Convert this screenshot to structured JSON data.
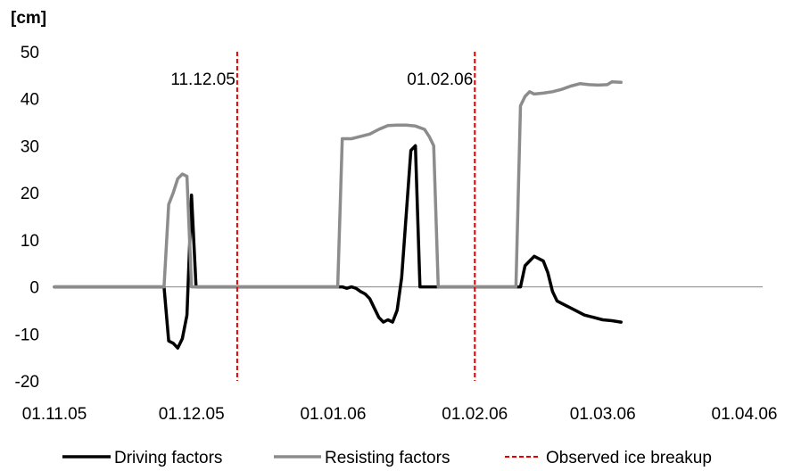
{
  "chart_data": {
    "type": "line",
    "ylabel": "[cm]",
    "ylim": [
      -20,
      50
    ],
    "yticks": [
      -20,
      -10,
      0,
      10,
      20,
      30,
      40,
      50
    ],
    "xlim": [
      "01.11.05",
      "05.04.06"
    ],
    "xticks": [
      "01.11.05",
      "01.12.05",
      "01.01.06",
      "01.02.06",
      "01.03.06",
      "01.04.06"
    ],
    "grid": false,
    "legend": "bottom",
    "series": [
      {
        "name": "Driving factors",
        "color": "#000000",
        "points": [
          [
            "01.11.05",
            0
          ],
          [
            "25.11.05",
            0
          ],
          [
            "26.11.05",
            -11.5
          ],
          [
            "27.11.05",
            -12
          ],
          [
            "28.11.05",
            -13
          ],
          [
            "29.11.05",
            -11
          ],
          [
            "30.11.05",
            -6
          ],
          [
            "01.12.05",
            19.5
          ],
          [
            "02.12.05",
            0
          ],
          [
            "01.01.06",
            0
          ],
          [
            "02.01.06",
            0
          ],
          [
            "03.01.06",
            0
          ],
          [
            "04.01.06",
            -0.3
          ],
          [
            "05.01.06",
            0
          ],
          [
            "06.01.06",
            -0.3
          ],
          [
            "07.01.06",
            -1
          ],
          [
            "08.01.06",
            -1.5
          ],
          [
            "09.01.06",
            -2.5
          ],
          [
            "10.01.06",
            -4.5
          ],
          [
            "11.01.06",
            -6.5
          ],
          [
            "12.01.06",
            -7.5
          ],
          [
            "13.01.06",
            -7
          ],
          [
            "14.01.06",
            -7.5
          ],
          [
            "15.01.06",
            -5
          ],
          [
            "16.01.06",
            2
          ],
          [
            "18.01.06",
            29
          ],
          [
            "19.01.06",
            30
          ],
          [
            "20.01.06",
            0
          ],
          [
            "11.02.06",
            0
          ],
          [
            "12.02.06",
            4.5
          ],
          [
            "13.02.06",
            5.5
          ],
          [
            "14.02.06",
            6.5
          ],
          [
            "15.02.06",
            6
          ],
          [
            "16.02.06",
            5.5
          ],
          [
            "17.02.06",
            3
          ],
          [
            "18.02.06",
            -1
          ],
          [
            "19.02.06",
            -3
          ],
          [
            "21.02.06",
            -4
          ],
          [
            "23.02.06",
            -5
          ],
          [
            "25.02.06",
            -6
          ],
          [
            "27.02.06",
            -6.5
          ],
          [
            "01.03.06",
            -7
          ],
          [
            "03.03.06",
            -7.2
          ],
          [
            "05.03.06",
            -7.5
          ]
        ]
      },
      {
        "name": "Resisting factors",
        "color": "#8c8c8c",
        "points": [
          [
            "01.11.05",
            0
          ],
          [
            "25.11.05",
            0
          ],
          [
            "26.11.05",
            17.5
          ],
          [
            "27.11.05",
            20
          ],
          [
            "28.11.05",
            23
          ],
          [
            "29.11.05",
            24
          ],
          [
            "30.11.05",
            23.5
          ],
          [
            "01.12.05",
            0
          ],
          [
            "02.01.06",
            0
          ],
          [
            "03.01.06",
            31.5
          ],
          [
            "05.01.06",
            31.5
          ],
          [
            "07.01.06",
            32
          ],
          [
            "09.01.06",
            32.5
          ],
          [
            "11.01.06",
            33.5
          ],
          [
            "13.01.06",
            34.3
          ],
          [
            "15.01.06",
            34.4
          ],
          [
            "17.01.06",
            34.4
          ],
          [
            "19.01.06",
            34.2
          ],
          [
            "21.01.06",
            33.5
          ],
          [
            "22.01.06",
            32
          ],
          [
            "23.01.06",
            30
          ],
          [
            "24.01.06",
            0
          ],
          [
            "10.02.06",
            0
          ],
          [
            "11.02.06",
            38.5
          ],
          [
            "12.02.06",
            40.5
          ],
          [
            "13.02.06",
            41.5
          ],
          [
            "14.02.06",
            41
          ],
          [
            "16.02.06",
            41.2
          ],
          [
            "18.02.06",
            41.5
          ],
          [
            "20.02.06",
            42
          ],
          [
            "22.02.06",
            42.7
          ],
          [
            "24.02.06",
            43.2
          ],
          [
            "26.02.06",
            43
          ],
          [
            "28.02.06",
            42.9
          ],
          [
            "02.03.06",
            43
          ],
          [
            "03.03.06",
            43.6
          ],
          [
            "05.03.06",
            43.5
          ]
        ]
      },
      {
        "name": "Observed ice breakup",
        "color": "#e00000",
        "dashed": true,
        "vertical_lines": [
          {
            "x": "11.12.05",
            "label": "11.12.05"
          },
          {
            "x": "01.02.06",
            "label": "01.02.06"
          }
        ]
      }
    ]
  }
}
